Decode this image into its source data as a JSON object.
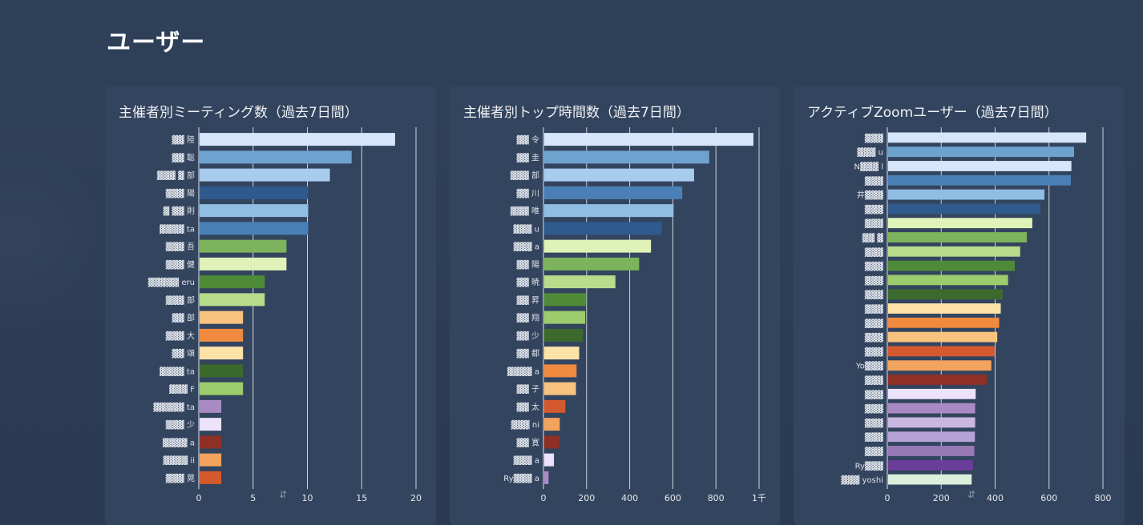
{
  "page": {
    "title": "ユーザー"
  },
  "colors": {
    "background": "#2c3d55",
    "panel": "#33445e",
    "palette": [
      "#d6e7fb",
      "#6ea3cf",
      "#a8ccee",
      "#2f5a8e",
      "#8fbde3",
      "#4a80b5",
      "#7db35c",
      "#dff2b8",
      "#4e8a38",
      "#b6dc8c",
      "#f7c37f",
      "#ef8a3e",
      "#fde3a7",
      "#3b6a2c",
      "#9ccc6c",
      "#a98ac4",
      "#ece2fa",
      "#8e3026",
      "#f2a35e",
      "#d45a2e",
      "#9779b5",
      "#c9b7e2",
      "#6a3d9a",
      "#dcefdc"
    ]
  },
  "charts": [
    {
      "title": "主催者別ミーティング数（過去7日間）",
      "ticks": [
        "0",
        "5",
        "10",
        "15",
        "20"
      ],
      "labels": [
        "▓▓ 陸",
        "▓▓ 聡",
        "▓▓▓ ▓ 部",
        "▓▓▓ 陽",
        "▓ ▓▓ 則",
        "▓▓▓▓ ta",
        "▓▓▓ 吾",
        "▓▓▓ 健",
        "▓▓▓▓▓ eru",
        "▓▓▓ 部",
        "▓▓ 部",
        "▓▓▓ 大",
        "▓▓ 頌",
        "▓▓▓▓ ta",
        "▓▓▓ F",
        "▓▓▓▓▓ ta",
        "▓▓▓ 少",
        "▓▓▓▓ a",
        "▓▓▓▓ ii",
        "▓▓▓ 晃"
      ]
    },
    {
      "title": "主催者別トップ時間数（過去7日間）",
      "ticks": [
        "0",
        "200",
        "400",
        "600",
        "800",
        "1千"
      ],
      "labels": [
        "▓▓ 令",
        "▓▓ 圭",
        "▓▓▓ 部",
        "▓▓ 川",
        "▓▓▓ 唯",
        "▓▓▓ u",
        "▓▓▓ a",
        "▓▓ 陽",
        "▓▓ 暁",
        "▓▓ 昇",
        "▓▓ 翔",
        "▓▓ 少",
        "▓▓ 都",
        "▓▓▓▓ a",
        "▓▓ 子",
        "▓▓ 太",
        "▓▓▓ ni",
        "▓▓ 寛",
        "▓▓▓ a",
        "Ry▓▓▓ a"
      ]
    },
    {
      "title": "アクティブZoomユーザー（過去7日間）",
      "ticks": [
        "0",
        "200",
        "400",
        "600",
        "800"
      ],
      "labels": [
        "▓▓▓",
        "▓▓▓ u",
        "N▓▓▓ l",
        "▓▓▓",
        "井▓▓▓",
        "▓▓▓",
        "▓▓▓",
        "▓▓ ▓",
        "▓▓▓",
        "▓▓▓",
        "▓▓▓",
        "▓▓▓",
        "▓▓▓",
        "▓▓▓",
        "▓▓▓",
        "▓▓▓",
        "Yo▓▓▓",
        "▓▓▓",
        "▓▓▓",
        "▓▓▓",
        "▓▓▓",
        "▓▓▓",
        "▓▓▓",
        "Ry▓▓▓",
        "▓▓▓ yoshi"
      ]
    }
  ],
  "chart_data": [
    {
      "type": "bar",
      "orientation": "horizontal",
      "title": "主催者別ミーティング数（過去7日間）",
      "xlim": [
        0,
        20
      ],
      "ticks": [
        0,
        5,
        10,
        15,
        20
      ],
      "values": [
        18,
        14,
        12,
        10,
        10,
        10,
        8,
        8,
        6,
        6,
        4,
        4,
        4,
        4,
        4,
        2,
        2,
        2,
        2,
        2
      ],
      "bar_colors": [
        "#d6e7fb",
        "#6ea3cf",
        "#a8ccee",
        "#2f5a8e",
        "#8fbde3",
        "#4a80b5",
        "#7db35c",
        "#dff2b8",
        "#4e8a38",
        "#b6dc8c",
        "#f7c37f",
        "#ef8a3e",
        "#fde3a7",
        "#3b6a2c",
        "#9ccc6c",
        "#a98ac4",
        "#ece2fa",
        "#8e3026",
        "#f2a35e",
        "#d45a2e"
      ],
      "grid": true
    },
    {
      "type": "bar",
      "orientation": "horizontal",
      "title": "主催者別トップ時間数（過去7日間）",
      "xlim": [
        0,
        1000
      ],
      "ticks": [
        0,
        200,
        400,
        600,
        800,
        1000
      ],
      "values": [
        970,
        765,
        695,
        640,
        600,
        545,
        495,
        440,
        330,
        195,
        190,
        180,
        162,
        150,
        147,
        98,
        72,
        70,
        45,
        20
      ],
      "bar_colors": [
        "#d6e7fb",
        "#6ea3cf",
        "#a8ccee",
        "#4a80b5",
        "#8fbde3",
        "#2f5a8e",
        "#dff2b8",
        "#7db35c",
        "#b6dc8c",
        "#4e8a38",
        "#9ccc6c",
        "#3b6a2c",
        "#fde3a7",
        "#ef8a3e",
        "#f7c37f",
        "#d45a2e",
        "#f2a35e",
        "#8e3026",
        "#ece2fa",
        "#a98ac4"
      ],
      "grid": true
    },
    {
      "type": "bar",
      "orientation": "horizontal",
      "title": "アクティブZoomユーザー（過去7日間）",
      "xlim": [
        0,
        800
      ],
      "ticks": [
        0,
        200,
        400,
        600,
        800
      ],
      "values": [
        735,
        690,
        680,
        678,
        580,
        565,
        535,
        515,
        490,
        470,
        445,
        425,
        418,
        412,
        405,
        395,
        383,
        367,
        325,
        323,
        323,
        322,
        320,
        315,
        310
      ],
      "bar_colors": [
        "#d6e7fb",
        "#6ea3cf",
        "#d6e7fb",
        "#4a80b5",
        "#8fbde3",
        "#2f5a8e",
        "#dff2b8",
        "#7db35c",
        "#b6dc8c",
        "#4e8a38",
        "#9ccc6c",
        "#3b6a2c",
        "#fde3a7",
        "#ef8a3e",
        "#f7c37f",
        "#d45a2e",
        "#f2a35e",
        "#8e3026",
        "#ece2fa",
        "#a98ac4",
        "#c9b7e2",
        "#b5a3d6",
        "#9779b5",
        "#6a3d9a",
        "#dcefdc"
      ],
      "grid": true
    }
  ]
}
